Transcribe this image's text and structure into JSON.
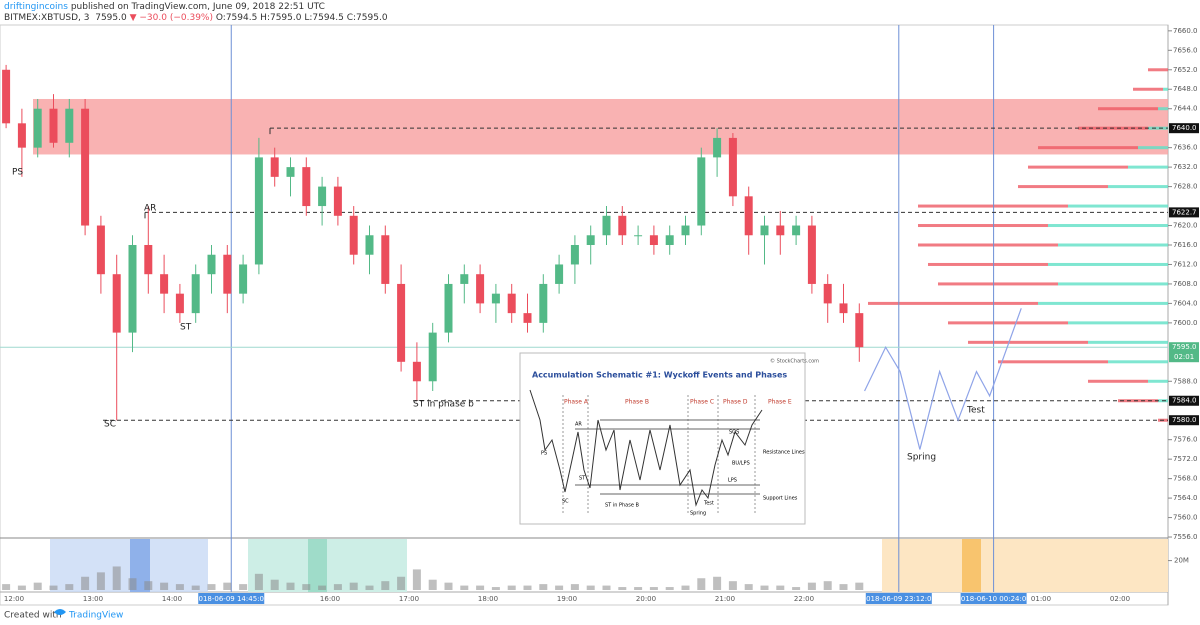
{
  "header": {
    "author": "driftingincoins",
    "published": "published on TradingView.com, June 09, 2018 22:51 UTC",
    "symbol": "BITMEX:XBTUSD, 3",
    "last": "7595.0",
    "change": "▼ −30.0 (−0.39%)",
    "ohlc": "O:7594.5 H:7595.0 L:7594.5 C:7595.0"
  },
  "chart_data": {
    "type": "candlestick",
    "up_color": "#53b987",
    "down_color": "#eb4d5c",
    "x": [
      "11:54",
      "12:06",
      "12:18",
      "12:30",
      "12:42",
      "12:54",
      "13:06",
      "13:18",
      "13:30",
      "13:42",
      "13:54",
      "14:06",
      "14:18",
      "14:30",
      "14:42",
      "14:54",
      "15:06",
      "15:18",
      "15:30",
      "15:42",
      "15:54",
      "16:06",
      "16:18",
      "16:30",
      "16:42",
      "16:54",
      "17:06",
      "17:18",
      "17:30",
      "17:42",
      "17:54",
      "18:06",
      "18:18",
      "18:30",
      "18:42",
      "18:54",
      "19:06",
      "19:18",
      "19:30",
      "19:42",
      "19:54",
      "20:06",
      "20:18",
      "20:30",
      "20:42",
      "20:54",
      "21:06",
      "21:18",
      "21:30",
      "21:42",
      "21:54",
      "22:06",
      "22:18",
      "22:30",
      "22:42"
    ],
    "open": [
      7652,
      7641,
      7636,
      7644,
      7637,
      7644,
      7620,
      7610,
      7598,
      7616,
      7610,
      7606,
      7602,
      7610,
      7614,
      7606,
      7612,
      7634,
      7630,
      7632,
      7624,
      7628,
      7622,
      7614,
      7618,
      7608,
      7592,
      7588,
      7598,
      7608,
      7610,
      7604,
      7606,
      7602,
      7600,
      7608,
      7612,
      7616,
      7618,
      7622,
      7618,
      7618,
      7616,
      7618,
      7620,
      7634,
      7638,
      7626,
      7618,
      7620,
      7618,
      7620,
      7608,
      7604,
      7602
    ],
    "high": [
      7653,
      7644,
      7646,
      7647,
      7646,
      7646,
      7622,
      7614,
      7618,
      7624,
      7614,
      7608,
      7612,
      7616,
      7616,
      7614,
      7638,
      7636,
      7634,
      7634,
      7630,
      7630,
      7624,
      7620,
      7620,
      7612,
      7596,
      7600,
      7610,
      7612,
      7612,
      7608,
      7608,
      7606,
      7610,
      7614,
      7618,
      7620,
      7624,
      7624,
      7620,
      7620,
      7620,
      7622,
      7636,
      7640,
      7639,
      7628,
      7622,
      7623,
      7622,
      7622,
      7610,
      7608,
      7604
    ],
    "low": [
      7640,
      7630,
      7634,
      7636,
      7634,
      7618,
      7606,
      7580,
      7594,
      7606,
      7602,
      7600,
      7600,
      7606,
      7602,
      7604,
      7610,
      7628,
      7626,
      7622,
      7620,
      7620,
      7612,
      7610,
      7606,
      7590,
      7584,
      7586,
      7596,
      7604,
      7602,
      7600,
      7600,
      7598,
      7598,
      7606,
      7608,
      7612,
      7616,
      7616,
      7616,
      7614,
      7614,
      7616,
      7618,
      7630,
      7624,
      7614,
      7612,
      7614,
      7616,
      7606,
      7600,
      7600,
      7592
    ],
    "close": [
      7641,
      7636,
      7644,
      7637,
      7644,
      7620,
      7610,
      7598,
      7616,
      7610,
      7606,
      7602,
      7610,
      7614,
      7606,
      7612,
      7634,
      7630,
      7632,
      7624,
      7628,
      7622,
      7614,
      7618,
      7608,
      7592,
      7588,
      7598,
      7608,
      7610,
      7604,
      7606,
      7602,
      7600,
      7608,
      7612,
      7616,
      7618,
      7622,
      7618,
      7618,
      7616,
      7618,
      7620,
      7634,
      7638,
      7626,
      7618,
      7620,
      7618,
      7620,
      7608,
      7604,
      7602,
      7595
    ],
    "volume": [
      4,
      3,
      5,
      3,
      4,
      9,
      12,
      16,
      8,
      6,
      5,
      4,
      3,
      4,
      5,
      4,
      11,
      7,
      5,
      4,
      3,
      4,
      5,
      3,
      6,
      9,
      14,
      7,
      5,
      3,
      3,
      2,
      3,
      3,
      4,
      3,
      4,
      3,
      3,
      2,
      2,
      2,
      2,
      3,
      8,
      9,
      6,
      4,
      3,
      3,
      2,
      5,
      6,
      4,
      5
    ],
    "ylim": [
      7555.8,
      7661.2
    ],
    "yticks": [
      {
        "value": 7556,
        "label": "7556.0"
      },
      {
        "value": 7560,
        "label": "7560.0"
      },
      {
        "value": 7564,
        "label": "7564.0"
      },
      {
        "value": 7568,
        "label": "7568.0"
      },
      {
        "value": 7572,
        "label": "7572.0"
      },
      {
        "value": 7576,
        "label": "7576.0"
      },
      {
        "value": 7588,
        "label": "7588.0"
      },
      {
        "value": 7600,
        "label": "7600.0"
      },
      {
        "value": 7604,
        "label": "7604.0"
      },
      {
        "value": 7608,
        "label": "7608.0"
      },
      {
        "value": 7612,
        "label": "7612.0"
      },
      {
        "value": 7616,
        "label": "7616.0"
      },
      {
        "value": 7620,
        "label": "7620.0"
      },
      {
        "value": 7628,
        "label": "7628.0"
      },
      {
        "value": 7632,
        "label": "7632.0"
      },
      {
        "value": 7636,
        "label": "7636.0"
      },
      {
        "value": 7644,
        "label": "7644.0"
      },
      {
        "value": 7648,
        "label": "7648.0"
      },
      {
        "value": 7652,
        "label": "7652.0"
      },
      {
        "value": 7656,
        "label": "7656.0"
      },
      {
        "value": 7660,
        "label": "7660.0"
      }
    ],
    "volume_ylim": [
      0,
      34
    ],
    "volume_yticks": [
      {
        "value": 20,
        "label": "20M"
      }
    ],
    "time_ticks": [
      "12:00",
      "13:00",
      "14:00",
      "16:00",
      "17:00",
      "18:00",
      "19:00",
      "20:00",
      "21:00",
      "22:00",
      "01:00",
      "02:00"
    ],
    "time_markers": [
      "2018-06-09 14:45:00",
      "2018-06-09 23:12:00",
      "2018-06-10 00:24:00"
    ],
    "zone": [
      7634.6,
      7646
    ],
    "levels": [
      {
        "value": 7640,
        "label": "7640.0"
      },
      {
        "value": 7622.7,
        "label": "7622.7"
      },
      {
        "value": 7584,
        "label": "7584.0"
      },
      {
        "value": 7580,
        "label": "7580.0"
      }
    ],
    "last_price": {
      "value": 7595,
      "label": "7595.0"
    },
    "countdown": "02:01",
    "annotations": [
      "PS",
      "AR",
      "ST",
      "SC",
      "ST in phase b",
      "Spring",
      "Test"
    ],
    "projection": {
      "x": [
        "22:46",
        "23:02",
        "23:13",
        "23:28",
        "23:43",
        "23:57",
        "00:11",
        "00:21",
        "00:45"
      ],
      "values": [
        7586,
        7595,
        7590,
        7574,
        7590,
        7580,
        7590,
        7585,
        7603
      ]
    },
    "volume_profile": {
      "prices": [
        7652,
        7648,
        7644,
        7640,
        7636,
        7632,
        7628,
        7624,
        7620,
        7616,
        7612,
        7608,
        7604,
        7600,
        7596,
        7592,
        7588,
        7584,
        7580
      ],
      "up": [
        0,
        5,
        10,
        20,
        30,
        40,
        60,
        100,
        120,
        110,
        120,
        110,
        130,
        100,
        80,
        60,
        20,
        10,
        0
      ],
      "down": [
        20,
        30,
        60,
        70,
        100,
        100,
        90,
        150,
        130,
        140,
        120,
        120,
        170,
        120,
        120,
        110,
        60,
        40,
        10
      ]
    }
  },
  "inset": {
    "title": "Accumulation Schematic #1: Wyckoff Events and Phases",
    "credit": "© StockCharts.com",
    "phases": [
      "Phase A",
      "Phase B",
      "Phase C",
      "Phase D",
      "Phase E"
    ],
    "labels": [
      "PS",
      "SC",
      "AR",
      "ST",
      "ST in Phase B",
      "Spring",
      "Test",
      "SOS",
      "BU/LPS",
      "LPS",
      "Resistance Lines",
      "Support Lines"
    ]
  },
  "footer": {
    "created": "Created with",
    "brand": "TradingView"
  }
}
